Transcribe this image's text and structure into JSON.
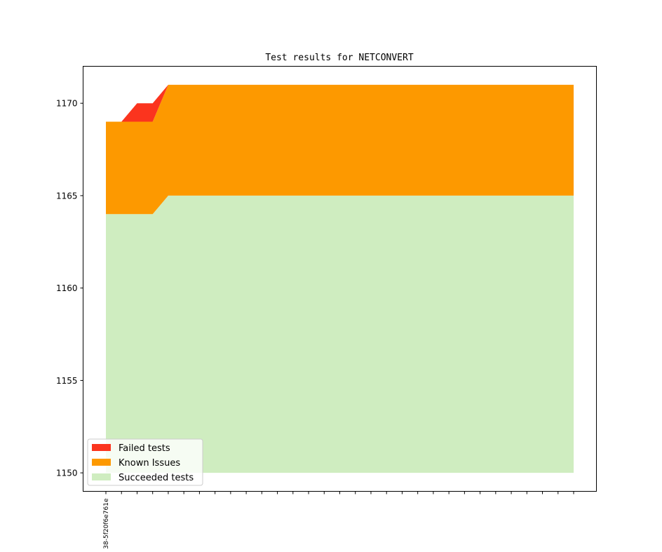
{
  "chart_data": {
    "type": "area",
    "title": "Test results for NETCONVERT",
    "xlabel": "",
    "ylabel": "",
    "ylim": [
      1149.0,
      1172.0
    ],
    "yticks": [
      1150,
      1155,
      1160,
      1165,
      1170
    ],
    "x_count": 31,
    "x_tick_labels": [
      "38-5f20f6e761e"
    ],
    "series": [
      {
        "name": "Succeeded tests",
        "color": "#cfedc0",
        "values": [
          1164,
          1164,
          1164,
          1164,
          1165,
          1165,
          1165,
          1165,
          1165,
          1165,
          1165,
          1165,
          1165,
          1165,
          1165,
          1165,
          1165,
          1165,
          1165,
          1165,
          1165,
          1165,
          1165,
          1165,
          1165,
          1165,
          1165,
          1165,
          1165,
          1165,
          1165
        ]
      },
      {
        "name": "Known Issues",
        "color": "#fd9900",
        "values": [
          5,
          5,
          5,
          5,
          6,
          6,
          6,
          6,
          6,
          6,
          6,
          6,
          6,
          6,
          6,
          6,
          6,
          6,
          6,
          6,
          6,
          6,
          6,
          6,
          6,
          6,
          6,
          6,
          6,
          6,
          6
        ]
      },
      {
        "name": "Failed tests",
        "color": "#fb341e",
        "values": [
          0,
          0,
          1,
          1,
          0,
          0,
          0,
          0,
          0,
          0,
          0,
          0,
          0,
          0,
          0,
          0,
          0,
          0,
          0,
          0,
          0,
          0,
          0,
          0,
          0,
          0,
          0,
          0,
          0,
          0,
          0
        ]
      }
    ],
    "area_baseline": 1150,
    "legend": {
      "placement": "lower-left",
      "entries": [
        "Failed tests",
        "Known Issues",
        "Succeeded tests"
      ]
    },
    "grid": false
  }
}
